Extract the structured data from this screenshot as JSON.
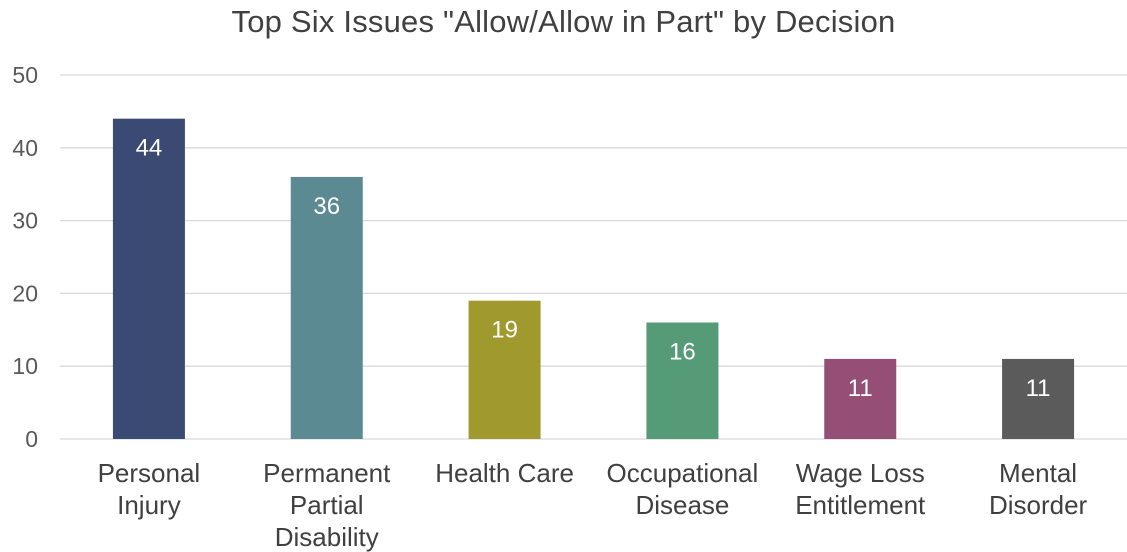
{
  "chart_data": {
    "type": "bar",
    "title": "Top Six Issues \"Allow/Allow in Part\" by Decision",
    "categories": [
      [
        "Personal",
        "Injury"
      ],
      [
        "Permanent",
        "Partial",
        "Disability"
      ],
      [
        "Health Care"
      ],
      [
        "Occupational",
        "Disease"
      ],
      [
        "Wage Loss",
        "Entitlement"
      ],
      [
        "Mental",
        "Disorder"
      ]
    ],
    "values": [
      44,
      36,
      19,
      16,
      11,
      11
    ],
    "colors": [
      "#3b4a72",
      "#5c8a93",
      "#a09a2e",
      "#569b78",
      "#954f77",
      "#5b5b5b"
    ],
    "ylim": [
      0,
      50
    ],
    "yticks": [
      0,
      10,
      20,
      30,
      40,
      50
    ],
    "grid": true,
    "data_labels": true,
    "xlabel": "",
    "ylabel": ""
  }
}
